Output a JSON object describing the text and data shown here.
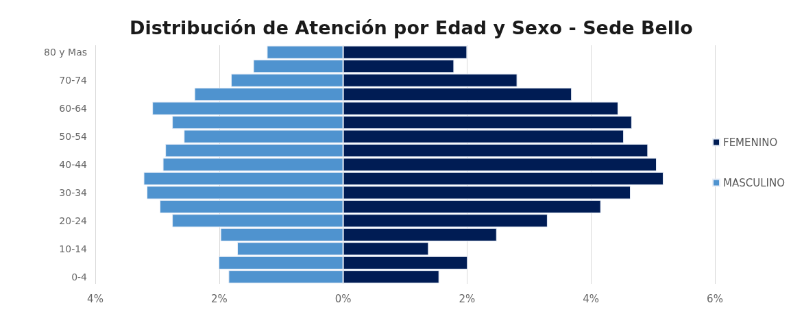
{
  "chart_data": {
    "type": "bar",
    "orientation": "horizontal",
    "title": "Distribución de Atención por Edad y Sexo - Sede Bello",
    "categories": [
      "80 y Mas",
      null,
      "70-74",
      null,
      "60-64",
      null,
      "50-54",
      null,
      "40-44",
      null,
      "30-34",
      null,
      "20-24",
      null,
      "10-14",
      null,
      "0-4"
    ],
    "series": [
      {
        "name": "FEMENINO",
        "color": "#001c54",
        "values": [
          2.0,
          1.79,
          2.81,
          3.69,
          4.44,
          4.66,
          4.53,
          4.92,
          5.06,
          5.17,
          4.64,
          4.16,
          3.3,
          2.48,
          1.38,
          2.01,
          1.55
        ]
      },
      {
        "name": "MASCULINO",
        "color": "#4f93cf",
        "values": [
          -1.23,
          -1.45,
          -1.81,
          -2.4,
          -3.08,
          -2.76,
          -2.57,
          -2.87,
          -2.91,
          -3.22,
          -3.17,
          -2.96,
          -2.76,
          -1.98,
          -1.71,
          -2.01,
          -1.85
        ]
      }
    ],
    "xlim": [
      -4,
      6
    ],
    "xticks": [
      {
        "value": -4,
        "label": "4%"
      },
      {
        "value": -2,
        "label": "2%"
      },
      {
        "value": 0,
        "label": "0%"
      },
      {
        "value": 2,
        "label": "2%"
      },
      {
        "value": 4,
        "label": "4%"
      },
      {
        "value": 6,
        "label": "6%"
      }
    ],
    "grid": "x",
    "legend": "right",
    "stacked": true
  }
}
